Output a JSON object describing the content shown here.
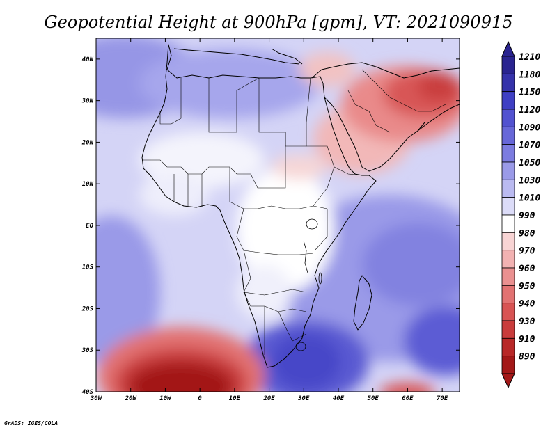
{
  "title": "Geopotential Height at 900hPa [gpm], VT: 2021090915",
  "credit": "GrADS: IGES/COLA",
  "axes": {
    "lat_labels": [
      "40N",
      "30N",
      "20N",
      "10N",
      "EQ",
      "10S",
      "20S",
      "30S",
      "40S"
    ],
    "lat_values": [
      40,
      30,
      20,
      10,
      0,
      -10,
      -20,
      -30,
      -40
    ],
    "lon_labels": [
      "30W",
      "20W",
      "10W",
      "0",
      "10E",
      "20E",
      "30E",
      "40E",
      "50E",
      "60E",
      "70E"
    ],
    "lon_values": [
      -30,
      -20,
      -10,
      0,
      10,
      20,
      30,
      40,
      50,
      60,
      70
    ],
    "lon_range": [
      -30,
      75
    ],
    "lat_range": [
      -40,
      45
    ]
  },
  "colorbar": {
    "levels": [
      "1210",
      "1180",
      "1150",
      "1120",
      "1090",
      "1070",
      "1050",
      "1030",
      "1010",
      "990",
      "980",
      "970",
      "960",
      "950",
      "940",
      "930",
      "910",
      "890"
    ],
    "colors": [
      "#2a2490",
      "#3532aa",
      "#3f3fc4",
      "#5252d0",
      "#6767d8",
      "#7c7ce0",
      "#9a9ae8",
      "#babaf0",
      "#dcdcf8",
      "#ffffff",
      "#f8d4d4",
      "#f2b2b2",
      "#ea9090",
      "#e27272",
      "#d85454",
      "#c93c3c",
      "#b82828",
      "#a31818"
    ]
  },
  "icons": {
    "colorbar_top": "triangle-up-icon",
    "colorbar_bottom": "triangle-down-icon"
  }
}
